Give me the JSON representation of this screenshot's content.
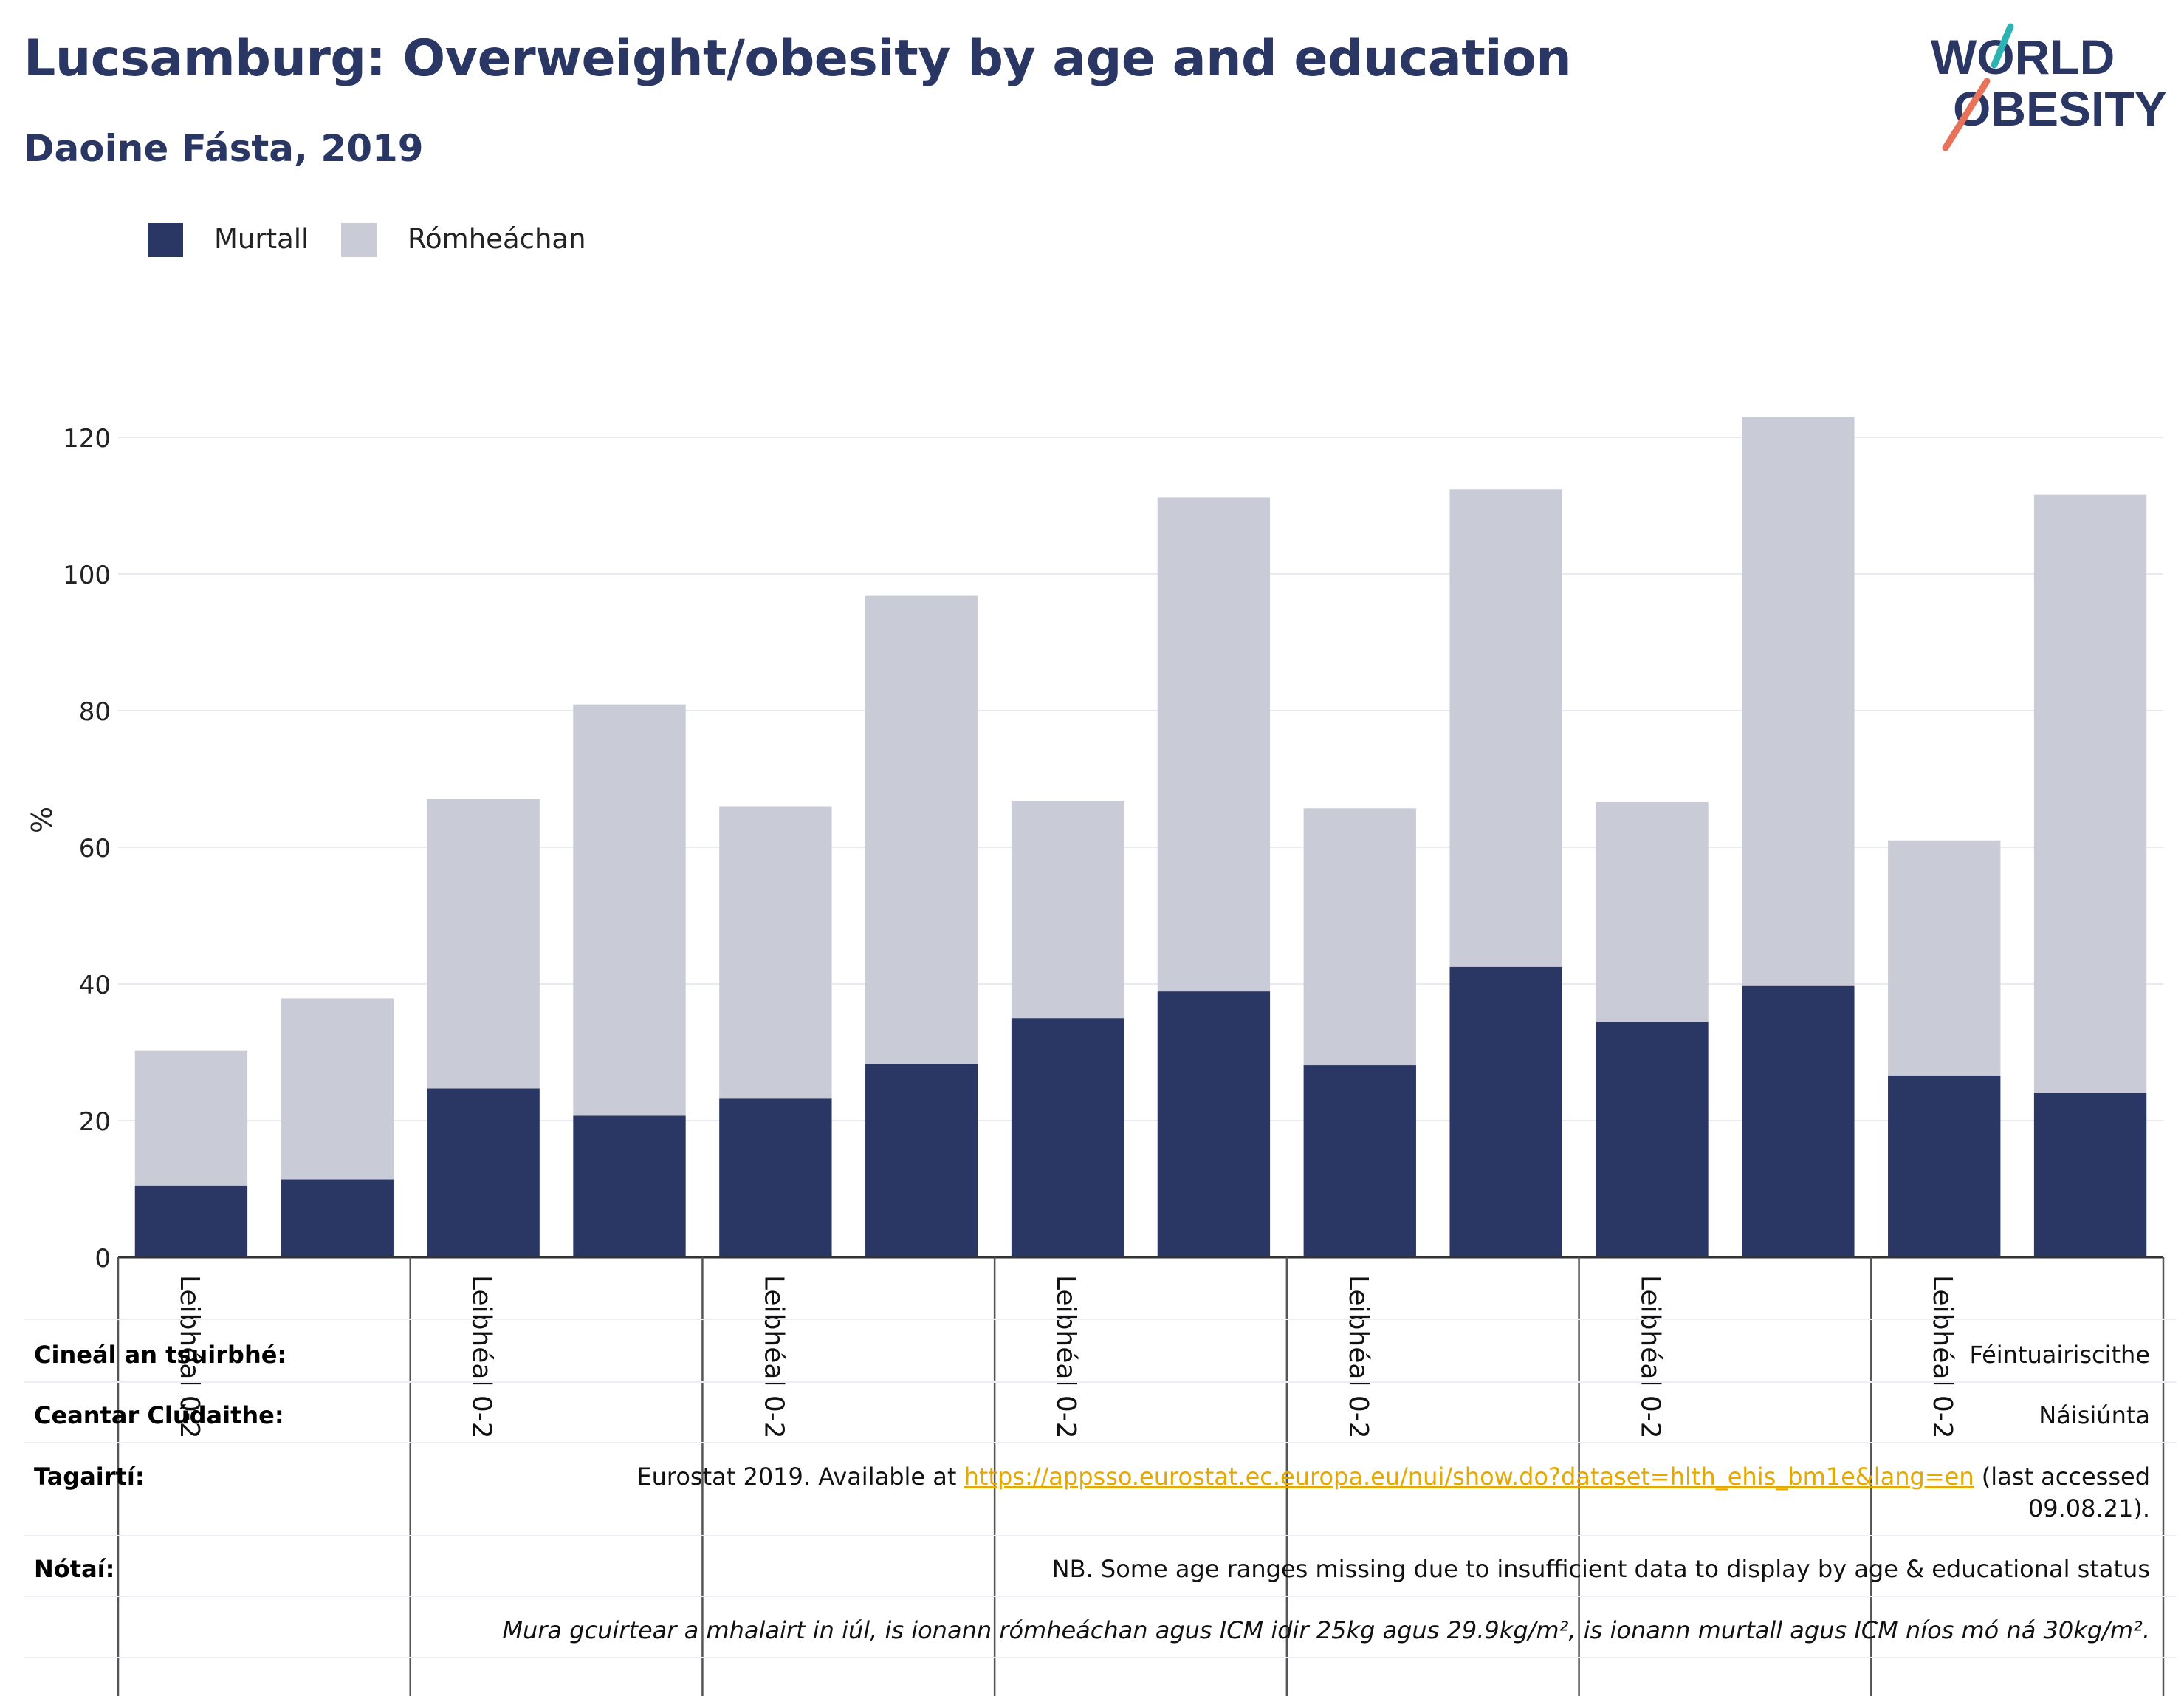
{
  "title": "Lucsamburg: Overweight/obesity by age and education",
  "subtitle": "Daoine Fásta, 2019",
  "colors": {
    "obese": "#2a3663",
    "overweight": "#c9cbd7",
    "title": "#2a3663",
    "link": "#e5a800",
    "logo_teal": "#2bb3b1",
    "logo_orange": "#e8735a"
  },
  "logo": {
    "line1": "WORLD",
    "line2": "OBESITY"
  },
  "legend": [
    {
      "label": "Murtall",
      "color": "#2a3663"
    },
    {
      "label": "Rómheáchan",
      "color": "#c9cbd7"
    }
  ],
  "chart_data": {
    "type": "bar",
    "stacked": true,
    "ylabel": "%",
    "ylim": [
      0,
      128
    ],
    "yticks": [
      0,
      20,
      40,
      60,
      80,
      100,
      120
    ],
    "grid": true,
    "legend_position": "top-left",
    "categories": [
      "Leibhéal 0-2",
      "",
      "Leibhéal 0-2",
      "",
      "Leibhéal 0-2",
      "",
      "Leibhéal 0-2",
      "",
      "Leibhéal 0-2",
      "",
      "Leibhéal 0-2",
      "",
      "Leibhéal 0-2",
      ""
    ],
    "series": [
      {
        "name": "Murtall",
        "values": [
          10.5,
          11.4,
          24.7,
          20.7,
          23.2,
          28.3,
          35.0,
          38.9,
          28.1,
          42.5,
          34.4,
          39.7,
          26.6,
          24.0
        ]
      },
      {
        "name": "Rómheáchan",
        "values": [
          19.7,
          26.5,
          42.4,
          60.2,
          42.8,
          68.5,
          31.8,
          72.3,
          37.6,
          69.9,
          32.2,
          83.3,
          34.4,
          87.6
        ]
      }
    ]
  },
  "meta": {
    "survey_type_label": "Cineál an tsuirbhé:",
    "survey_type_value": "Féintuairiscithe",
    "area_label": "Ceantar Clúdaithe:",
    "area_value": "Náisiúnta",
    "references_label": "Tagairtí:",
    "references_text_before": "Eurostat 2019. Available at ",
    "references_link": "https://appsso.eurostat.ec.europa.eu/nui/show.do?dataset=hlth_ehis_bm1e&lang=en",
    "references_text_after": " (last accessed",
    "references_text_line2": "09.08.21).",
    "notes_label": "Nótaí:",
    "notes_line1": "NB. Some age ranges missing due to insufficient data to display by age & educational status",
    "notes_line2": "Mura gcuirtear a mhalairt in iúl, is ionann rómheáchan agus ICM idir 25kg agus 29.9kg/m², is ionann murtall agus ICM níos mó ná 30kg/m²."
  }
}
